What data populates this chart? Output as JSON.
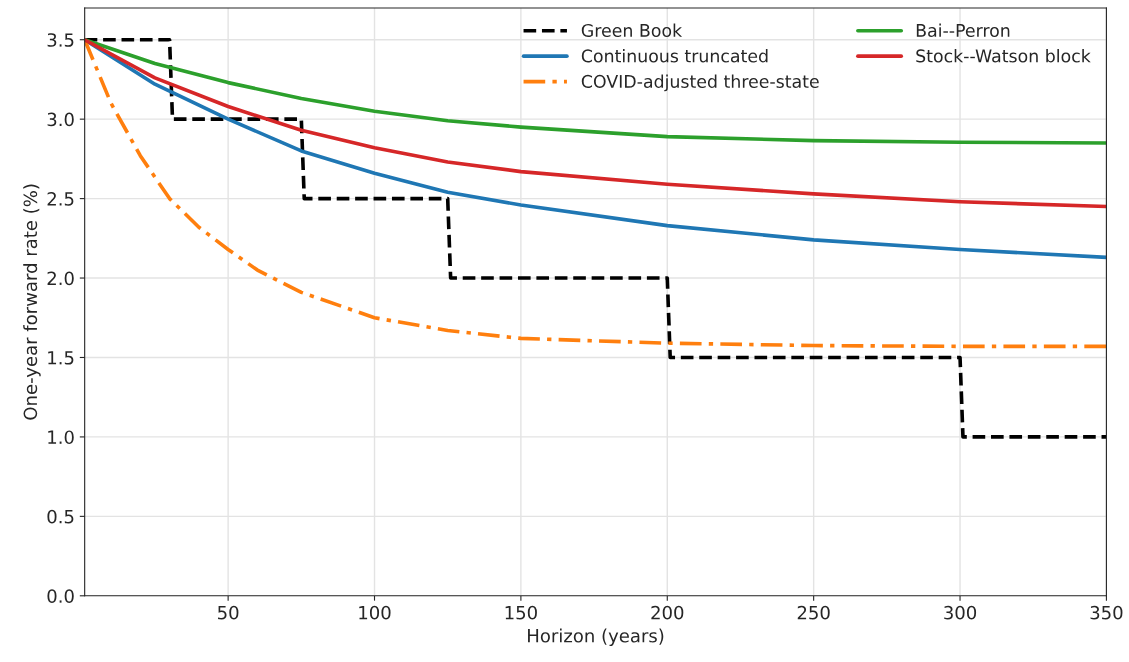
{
  "chart_data": {
    "type": "line",
    "xlabel": "Horizon (years)",
    "ylabel": "One-year forward rate (%)",
    "xlim": [
      1,
      350
    ],
    "ylim": [
      0,
      3.7
    ],
    "xticks": [
      50,
      100,
      150,
      200,
      250,
      300,
      350
    ],
    "yticks": [
      {
        "value": 0,
        "label": "0.0"
      },
      0.5,
      {
        "value": 1,
        "label": "1.0"
      },
      1.5,
      {
        "value": 2,
        "label": "2.0"
      },
      2.5,
      {
        "value": 3,
        "label": "3.0"
      },
      3.5
    ],
    "grid": true,
    "legend": "top right",
    "series": [
      {
        "name": "Green Book",
        "color": "#000000",
        "line_style": "dashed",
        "x": [
          1,
          30,
          31,
          75,
          76,
          125,
          126,
          200,
          201,
          300,
          301,
          350
        ],
        "values": [
          3.5,
          3.5,
          3.0,
          3.0,
          2.5,
          2.5,
          2.0,
          2.0,
          1.5,
          1.5,
          1.0,
          1.0
        ]
      },
      {
        "name": "Continuous truncated",
        "color": "#1f77b4",
        "line_style": "solid",
        "x": [
          1,
          25,
          50,
          75,
          100,
          125,
          150,
          200,
          250,
          300,
          350
        ],
        "values": [
          3.5,
          3.22,
          3.0,
          2.8,
          2.66,
          2.54,
          2.46,
          2.33,
          2.24,
          2.18,
          2.13
        ]
      },
      {
        "name": "COVID-adjusted three-state",
        "color": "#ff7f0e",
        "line_style": "dashdot",
        "x": [
          1,
          10,
          20,
          30,
          40,
          50,
          60,
          75,
          100,
          125,
          150,
          200,
          250,
          300,
          350
        ],
        "values": [
          3.5,
          3.1,
          2.77,
          2.5,
          2.32,
          2.18,
          2.05,
          1.91,
          1.75,
          1.67,
          1.62,
          1.59,
          1.575,
          1.57,
          1.57
        ]
      },
      {
        "name": "Bai--Perron",
        "color": "#2ca02c",
        "line_style": "solid",
        "x": [
          1,
          25,
          50,
          75,
          100,
          125,
          150,
          200,
          250,
          300,
          350
        ],
        "values": [
          3.5,
          3.35,
          3.23,
          3.13,
          3.05,
          2.99,
          2.95,
          2.89,
          2.865,
          2.855,
          2.85
        ]
      },
      {
        "name": "Stock--Watson block",
        "color": "#d62728",
        "line_style": "solid",
        "x": [
          1,
          25,
          50,
          75,
          100,
          125,
          150,
          200,
          250,
          300,
          350
        ],
        "values": [
          3.5,
          3.26,
          3.08,
          2.93,
          2.82,
          2.73,
          2.67,
          2.59,
          2.53,
          2.48,
          2.45
        ]
      }
    ]
  }
}
